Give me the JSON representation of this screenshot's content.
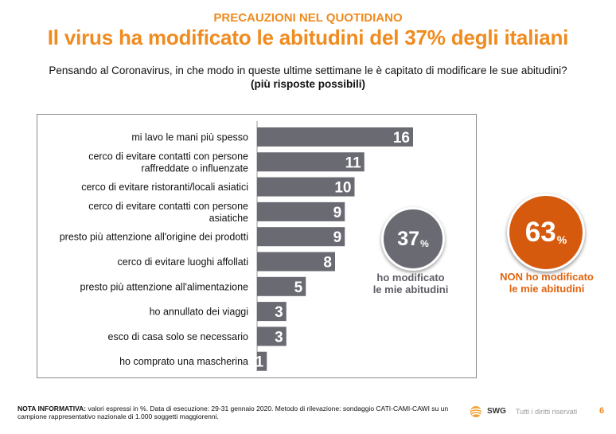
{
  "header": {
    "supertitle": "PRECAUZIONI NEL QUOTIDIANO",
    "title": "Il virus ha modificato le abitudini del 37% degli italiani",
    "question": "Pensando al Coronavirus, in che modo in queste ultime settimane le è capitato di modificare le sue abitudini?",
    "question_note": "(più risposte possibili)"
  },
  "chart_data": {
    "type": "bar",
    "orientation": "horizontal",
    "categories": [
      [
        "mi lavo le mani più spesso"
      ],
      [
        "cerco di evitare contatti con persone",
        "raffreddate o influenzate"
      ],
      [
        "cerco di evitare ristoranti/locali asiatici"
      ],
      [
        "cerco di evitare contatti con persone",
        "asiatiche"
      ],
      [
        "presto più attenzione all'origine dei prodotti"
      ],
      [
        "cerco di evitare luoghi affollati"
      ],
      [
        "presto più attenzione all'alimentazione"
      ],
      [
        "ho annullato dei viaggi"
      ],
      [
        "esco di casa solo se necessario"
      ],
      [
        "ho comprato una mascherina"
      ]
    ],
    "values": [
      16,
      11,
      10,
      9,
      9,
      8,
      5,
      3,
      3,
      1
    ],
    "value_labels": [
      "16",
      "11",
      "10",
      "9",
      "9",
      "8",
      "5",
      "3",
      "3",
      "1"
    ],
    "xlim": [
      0,
      20
    ],
    "bar_color": "#6A6A73",
    "label_color": "#ffffff"
  },
  "callouts": {
    "modified": {
      "value": "37",
      "unit": "%",
      "caption_line1": "ho modificato",
      "caption_line2": "le mie abitudini",
      "color": "#6A6A73"
    },
    "not_modified": {
      "value": "63",
      "unit": "%",
      "caption_line1": "NON ho modificato",
      "caption_line2": "le mie abitudini",
      "color": "#D65A0E"
    }
  },
  "footer": {
    "note_label": "NOTA INFORMATIVA:",
    "note_text": "valori espressi in %. Data di esecuzione: 29-31 gennaio 2020. Metodo di rilevazione: sondaggio CATI-CAMI-CAWI su un campione rappresentativo nazionale di 1.000 soggetti maggiorenni.",
    "brand": "SWG",
    "brand_icon": "swg-logo-icon",
    "rights": "Tutti i diritti riservati",
    "page": "6"
  }
}
